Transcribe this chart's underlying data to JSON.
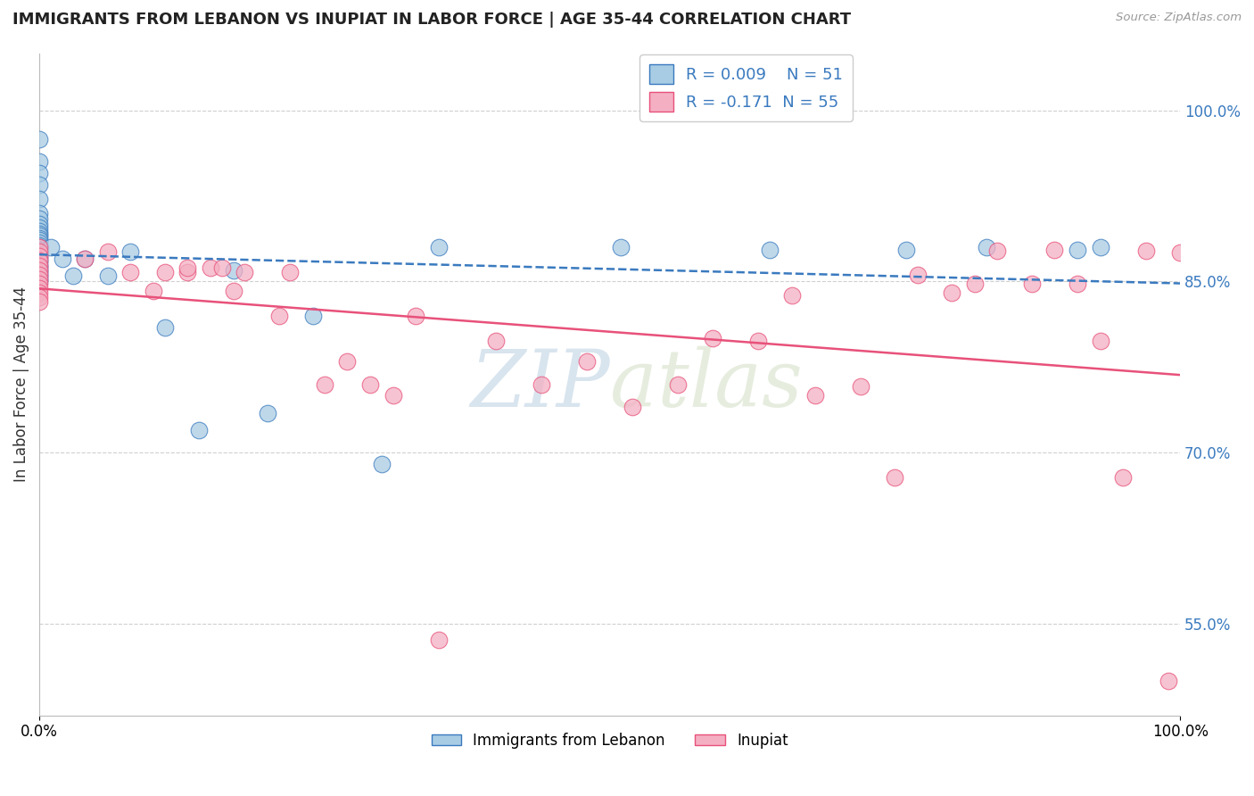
{
  "title": "IMMIGRANTS FROM LEBANON VS INUPIAT IN LABOR FORCE | AGE 35-44 CORRELATION CHART",
  "source": "Source: ZipAtlas.com",
  "ylabel": "In Labor Force | Age 35-44",
  "xlim": [
    0.0,
    1.0
  ],
  "ylim": [
    0.47,
    1.05
  ],
  "yticks": [
    0.55,
    0.7,
    0.85,
    1.0
  ],
  "ytick_labels": [
    "55.0%",
    "70.0%",
    "85.0%",
    "100.0%"
  ],
  "xtick_labels": [
    "0.0%",
    "100.0%"
  ],
  "legend_r1": "R = 0.009",
  "legend_n1": "N = 51",
  "legend_r2": "R = -0.171",
  "legend_n2": "N = 55",
  "color_blue": "#a8cce4",
  "color_pink": "#f4afc3",
  "line_color_blue": "#3a7abf",
  "line_color_pink": "#e8517a",
  "watermark_zip": "ZIP",
  "watermark_atlas": "atlas",
  "blue_scatter_x": [
    0.0,
    0.0,
    0.0,
    0.0,
    0.0,
    0.0,
    0.0,
    0.0,
    0.0,
    0.0,
    0.0,
    0.0,
    0.0,
    0.0,
    0.0,
    0.0,
    0.0,
    0.0,
    0.0,
    0.0,
    0.0,
    0.0,
    0.0,
    0.0,
    0.0,
    0.0,
    0.0,
    0.0,
    0.0,
    0.0,
    0.0,
    0.0,
    0.01,
    0.02,
    0.03,
    0.04,
    0.06,
    0.08,
    0.11,
    0.14,
    0.17,
    0.2,
    0.24,
    0.3,
    0.35,
    0.51,
    0.64,
    0.76,
    0.83,
    0.91,
    0.93
  ],
  "blue_scatter_y": [
    0.975,
    0.955,
    0.945,
    0.935,
    0.922,
    0.91,
    0.905,
    0.9,
    0.897,
    0.894,
    0.892,
    0.89,
    0.888,
    0.886,
    0.884,
    0.882,
    0.88,
    0.878,
    0.876,
    0.874,
    0.872,
    0.87,
    0.868,
    0.866,
    0.864,
    0.862,
    0.86,
    0.858,
    0.856,
    0.854,
    0.852,
    0.85,
    0.88,
    0.87,
    0.855,
    0.87,
    0.855,
    0.876,
    0.81,
    0.72,
    0.86,
    0.735,
    0.82,
    0.69,
    0.88,
    0.88,
    0.878,
    0.878,
    0.88,
    0.878,
    0.88
  ],
  "pink_scatter_x": [
    0.0,
    0.0,
    0.0,
    0.0,
    0.0,
    0.0,
    0.0,
    0.0,
    0.0,
    0.0,
    0.0,
    0.0,
    0.0,
    0.04,
    0.06,
    0.08,
    0.1,
    0.11,
    0.13,
    0.13,
    0.15,
    0.16,
    0.17,
    0.18,
    0.21,
    0.22,
    0.25,
    0.27,
    0.29,
    0.31,
    0.33,
    0.35,
    0.4,
    0.44,
    0.48,
    0.52,
    0.56,
    0.59,
    0.63,
    0.66,
    0.68,
    0.72,
    0.75,
    0.77,
    0.8,
    0.82,
    0.84,
    0.87,
    0.89,
    0.91,
    0.93,
    0.95,
    0.97,
    0.99,
    1.0
  ],
  "pink_scatter_y": [
    0.88,
    0.876,
    0.872,
    0.868,
    0.864,
    0.86,
    0.856,
    0.852,
    0.848,
    0.844,
    0.84,
    0.836,
    0.832,
    0.87,
    0.876,
    0.858,
    0.842,
    0.858,
    0.858,
    0.862,
    0.862,
    0.862,
    0.842,
    0.858,
    0.82,
    0.858,
    0.76,
    0.78,
    0.76,
    0.75,
    0.82,
    0.536,
    0.798,
    0.76,
    0.78,
    0.74,
    0.76,
    0.8,
    0.798,
    0.838,
    0.75,
    0.758,
    0.678,
    0.856,
    0.84,
    0.848,
    0.877,
    0.848,
    0.878,
    0.848,
    0.798,
    0.678,
    0.877,
    0.5,
    0.875
  ],
  "background_color": "#ffffff",
  "grid_color": "#d0d0d0"
}
